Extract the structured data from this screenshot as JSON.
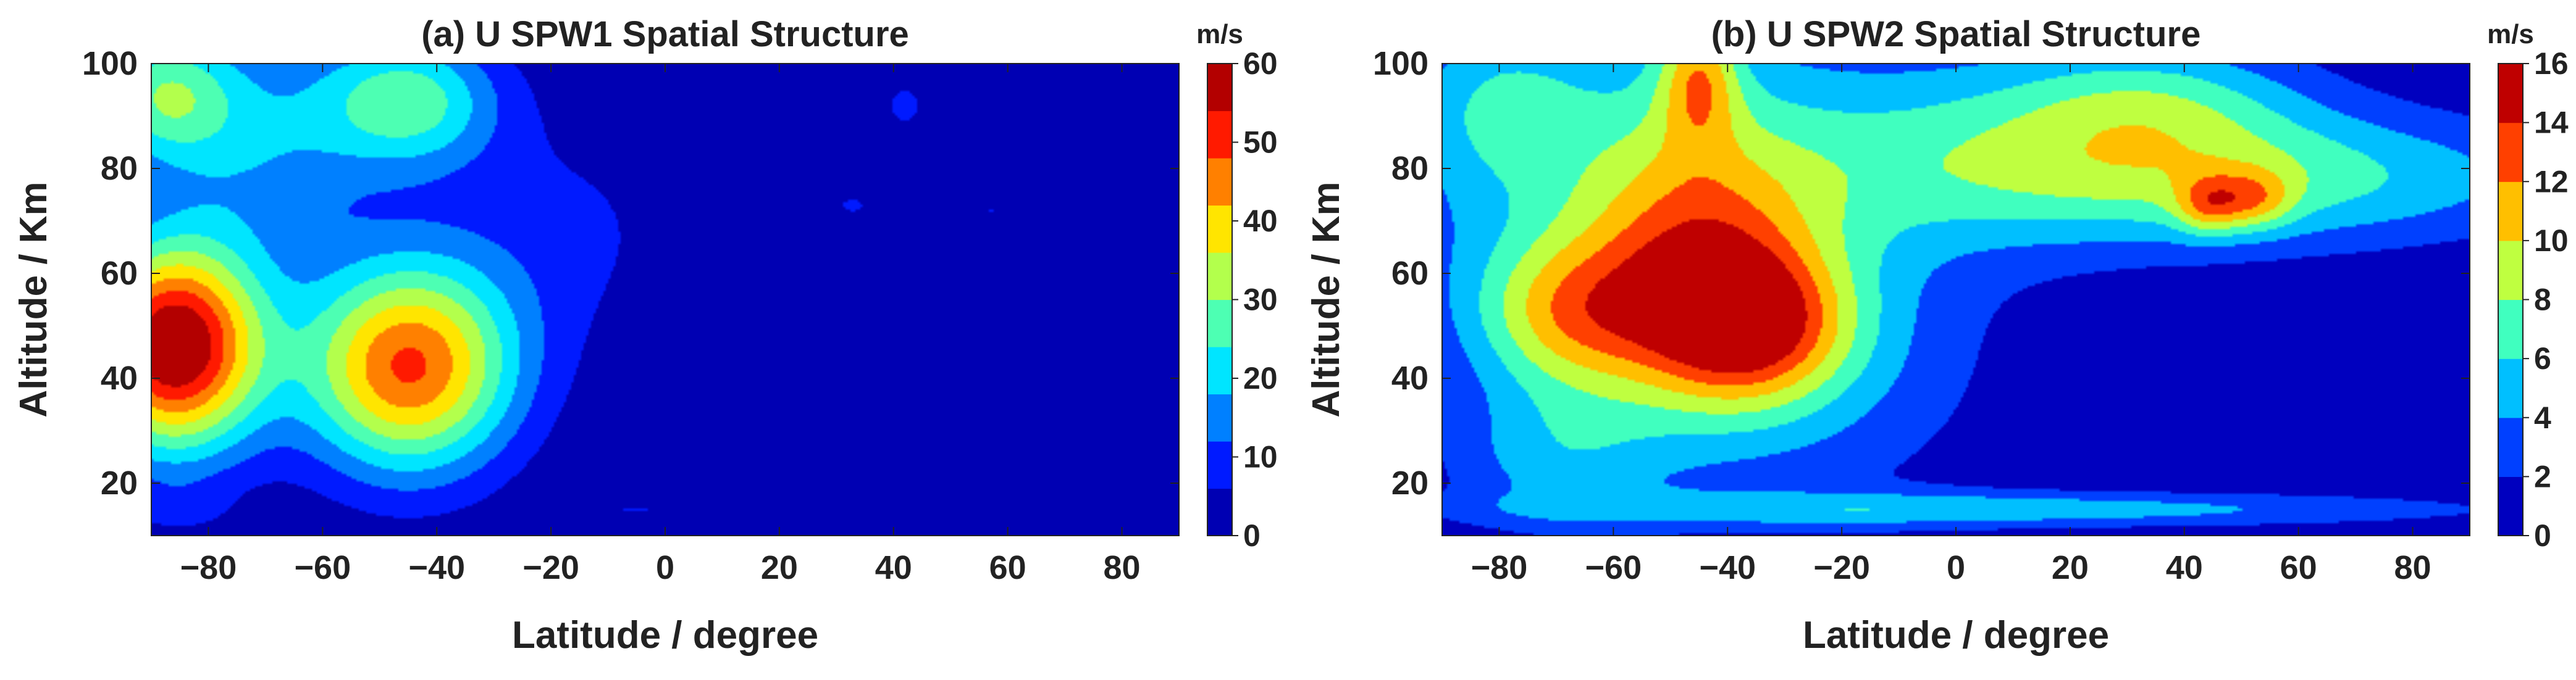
{
  "chart_data": [
    {
      "type": "heatmap",
      "title": "(a) U SPW1 Spatial Structure",
      "xlabel": "Latitude / degree",
      "ylabel": "Altitude / Km",
      "colorbar_label": "m/s",
      "xlim": [
        -90,
        90
      ],
      "ylim": [
        10,
        100
      ],
      "xticks": [
        -80,
        -60,
        -40,
        -20,
        0,
        20,
        40,
        60,
        80
      ],
      "yticks": [
        20,
        40,
        60,
        80,
        100
      ],
      "clim": [
        0,
        60
      ],
      "cticks": [
        0,
        10,
        20,
        30,
        40,
        50,
        60
      ],
      "levels": 10,
      "colormap": "jet",
      "features": [
        {
          "lat": -86,
          "alt": 46,
          "value": 62,
          "sx": 11,
          "sy": 14
        },
        {
          "lat": -45,
          "alt": 42,
          "value": 48,
          "sx": 13,
          "sy": 14
        },
        {
          "lat": -88,
          "alt": 94,
          "value": 26,
          "sx": 9,
          "sy": 9
        },
        {
          "lat": -45,
          "alt": 93,
          "value": 26,
          "sx": 11,
          "sy": 9
        },
        {
          "lat": -70,
          "alt": 85,
          "value": 15,
          "sx": 13,
          "sy": 16
        },
        {
          "lat": -20,
          "alt": 68,
          "value": 7,
          "sx": 20,
          "sy": 18
        },
        {
          "lat": 42,
          "alt": 92,
          "value": 7,
          "sx": 4,
          "sy": 5
        },
        {
          "lat": 33,
          "alt": 73,
          "value": 6,
          "sx": 6,
          "sy": 4
        },
        {
          "lat": 57,
          "alt": 72,
          "value": 6,
          "sx": 6,
          "sy": 5
        },
        {
          "lat": 80,
          "alt": 75,
          "value": 6,
          "sx": 6,
          "sy": 5
        },
        {
          "lat": -5,
          "alt": 15,
          "value": 6,
          "sx": 10,
          "sy": 1.6
        },
        {
          "lat": -85,
          "alt": 15,
          "value": 5,
          "sx": 6,
          "sy": 3
        }
      ]
    },
    {
      "type": "heatmap",
      "title": "(b) U SPW2 Spatial Structure",
      "xlabel": "Latitude / degree",
      "ylabel": "Altitude / Km",
      "colorbar_label": "m/s",
      "xlim": [
        -90,
        90
      ],
      "ylim": [
        10,
        100
      ],
      "xticks": [
        -80,
        -60,
        -40,
        -20,
        0,
        20,
        40,
        60,
        80
      ],
      "yticks": [
        20,
        40,
        60,
        80,
        100
      ],
      "clim": [
        0,
        16
      ],
      "cticks": [
        0,
        2,
        4,
        6,
        8,
        10,
        12,
        14,
        16
      ],
      "levels": 8,
      "colormap": "jet",
      "features": [
        {
          "lat": -36,
          "alt": 50,
          "value": 9,
          "sx": 12,
          "sy": 10
        },
        {
          "lat": -30,
          "alt": 45,
          "value": 4,
          "sx": 26,
          "sy": 22
        },
        {
          "lat": -45,
          "alt": 62,
          "value": 7,
          "sx": 14,
          "sy": 17
        },
        {
          "lat": -68,
          "alt": 52,
          "value": 7,
          "sx": 12,
          "sy": 10
        },
        {
          "lat": -45,
          "alt": 98,
          "value": 7,
          "sx": 5,
          "sy": 9
        },
        {
          "lat": -62,
          "alt": 80,
          "value": 5,
          "sx": 30,
          "sy": 26
        },
        {
          "lat": -80,
          "alt": 92,
          "value": 3,
          "sx": 10,
          "sy": 10
        },
        {
          "lat": 10,
          "alt": 85,
          "value": 5,
          "sx": 34,
          "sy": 14
        },
        {
          "lat": 55,
          "alt": 78,
          "value": 6,
          "sx": 40,
          "sy": 9
        },
        {
          "lat": 35,
          "alt": 93,
          "value": 4,
          "sx": 18,
          "sy": 8
        },
        {
          "lat": 44,
          "alt": 73,
          "value": 5,
          "sx": 4,
          "sy": 4
        },
        {
          "lat": 52,
          "alt": 74,
          "value": 5,
          "sx": 5,
          "sy": 4
        },
        {
          "lat": 10,
          "alt": 15,
          "value": 5,
          "sx": 60,
          "sy": 2.5
        },
        {
          "lat": -70,
          "alt": 25,
          "value": 4,
          "sx": 14,
          "sy": 10
        }
      ]
    }
  ]
}
